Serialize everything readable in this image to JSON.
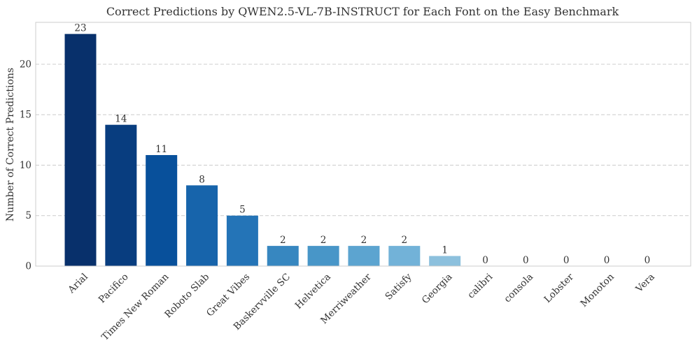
{
  "chart_data": {
    "type": "bar",
    "title": "Correct Predictions by QWEN2.5-VL-7B-INSTRUCT for Each Font on the Easy Benchmark",
    "xlabel": "",
    "ylabel": "Number of Correct Predictions",
    "categories": [
      "Arial",
      "Pacifico",
      "Times New Roman",
      "Roboto Slab",
      "Great Vibes",
      "Baskervville SC",
      "Helvetica",
      "Merriweather",
      "Satisfy",
      "Georgia",
      "calibri",
      "consola",
      "Lobster",
      "Monoton",
      "Vera"
    ],
    "values": [
      23,
      14,
      11,
      8,
      5,
      2,
      2,
      2,
      2,
      1,
      0,
      0,
      0,
      0,
      0
    ],
    "data_labels": [
      "23",
      "14",
      "11",
      "8",
      "5",
      "2",
      "2",
      "2",
      "2",
      "1",
      "0",
      "0",
      "0",
      "0",
      "0"
    ],
    "ylim": [
      0,
      24.15
    ],
    "yticks": [
      0,
      5,
      10,
      15,
      20
    ],
    "ytick_labels": [
      "0",
      "5",
      "10",
      "15",
      "20"
    ],
    "grid": "y-dashed",
    "colors": [
      "#08306b",
      "#083d7f",
      "#08509b",
      "#1764ab",
      "#2474b7",
      "#3787c0",
      "#4896c8",
      "#5ca4d0",
      "#72b2d8",
      "#8cc0dd",
      "#a0cbe2",
      "#b2d2e8",
      "#c4dbef",
      "#d1e2f3",
      "#dceaf6"
    ],
    "grid_color": "#cccccc",
    "axis_color": "#cccccc",
    "text_color": "#333333"
  }
}
